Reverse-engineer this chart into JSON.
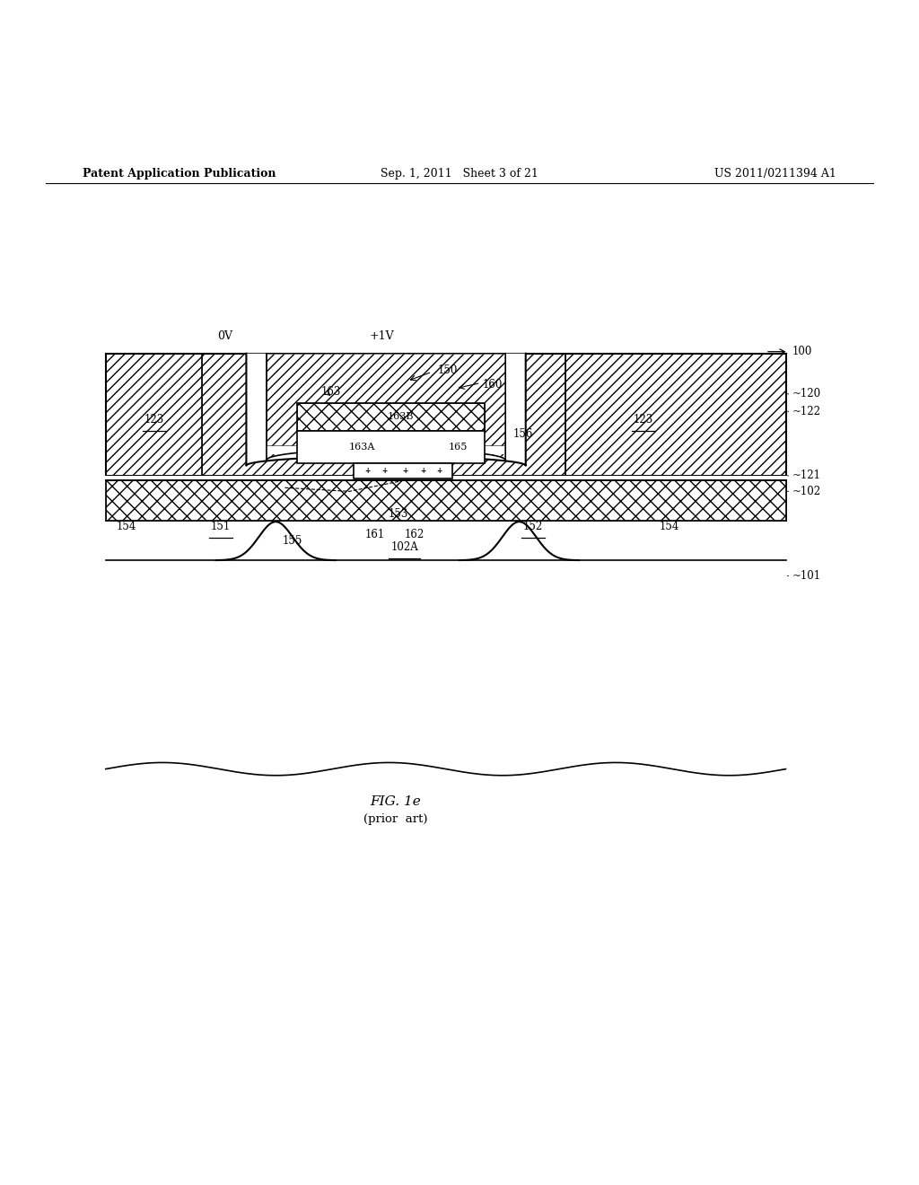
{
  "header_left": "Patent Application Publication",
  "header_center": "Sep. 1, 2011   Sheet 3 of 21",
  "header_right": "US 2011/0211394 A1",
  "fig_label": "FIG. 1e",
  "fig_sublabel": "(prior  art)",
  "bg_color": "#ffffff",
  "line_color": "#000000"
}
